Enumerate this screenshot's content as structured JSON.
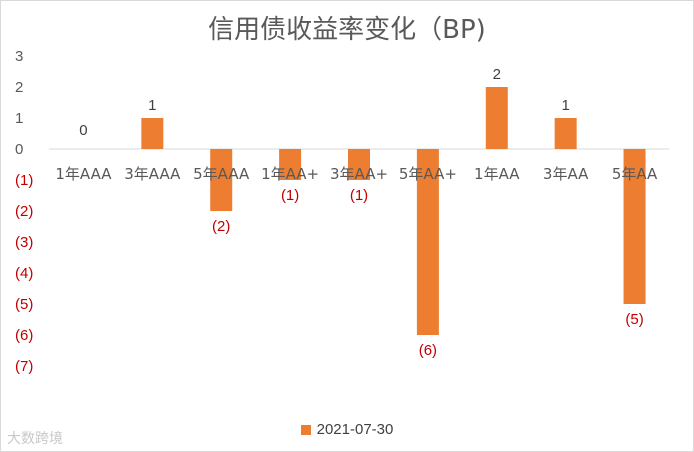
{
  "chart_data": {
    "type": "bar",
    "title": "信用债收益率变化（BP)",
    "categories": [
      "1年AAA",
      "3年AAA",
      "5年AAA",
      "1年AA+",
      "3年AA+",
      "5年AA+",
      "1年AA",
      "3年AA",
      "5年AA"
    ],
    "series": [
      {
        "name": "2021-07-30",
        "values": [
          0,
          1,
          -2,
          -1,
          -1,
          -6,
          2,
          1,
          -5
        ]
      }
    ],
    "data_labels": [
      "0",
      "1",
      "(2)",
      "(1)",
      "(1)",
      "(6)",
      "2",
      "1",
      "(5)"
    ],
    "y_tick_labels": [
      "3",
      "2",
      "1",
      "0",
      "(1)",
      "(2)",
      "(3)",
      "(4)",
      "(5)",
      "(6)",
      "(7)"
    ],
    "y_ticks": [
      3,
      2,
      1,
      0,
      -1,
      -2,
      -3,
      -4,
      -5,
      -6,
      -7
    ],
    "ylim": [
      -7,
      3
    ],
    "grid": false,
    "legend": "bottom",
    "colors": {
      "bar": "#ed7d31",
      "negative_label": "#c00000",
      "positive_label": "#404040",
      "axis": "#d9d9d9",
      "text": "#595959"
    }
  },
  "watermark": "大数跨境"
}
